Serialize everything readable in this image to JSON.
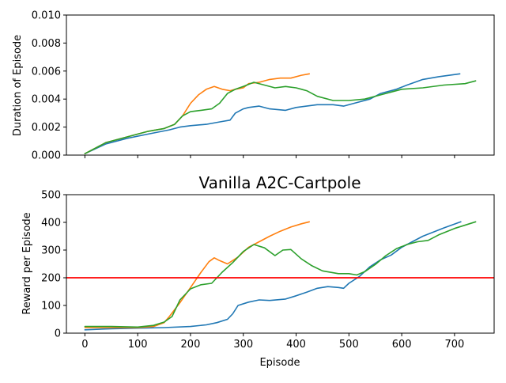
{
  "chart_data": [
    {
      "type": "line",
      "title": "",
      "xlabel": "",
      "ylabel": "Duration of Episode",
      "xlim": [
        -35,
        775
      ],
      "ylim": [
        0,
        0.01
      ],
      "x_ticks": [
        0,
        100,
        200,
        300,
        400,
        500,
        600,
        700
      ],
      "x_tick_labels_shown": false,
      "y_ticks": [
        "0.000",
        "0.002",
        "0.004",
        "0.006",
        "0.008",
        "0.010"
      ],
      "grid": false,
      "series": [
        {
          "color": "#1f77b4",
          "points": [
            [
              0,
              0.0001
            ],
            [
              40,
              0.0008
            ],
            [
              80,
              0.0012
            ],
            [
              120,
              0.0015
            ],
            [
              160,
              0.0018
            ],
            [
              180,
              0.002
            ],
            [
              200,
              0.0021
            ],
            [
              230,
              0.0022
            ],
            [
              260,
              0.0024
            ],
            [
              275,
              0.0025
            ],
            [
              285,
              0.003
            ],
            [
              300,
              0.0033
            ],
            [
              310,
              0.0034
            ],
            [
              330,
              0.0035
            ],
            [
              350,
              0.0033
            ],
            [
              380,
              0.0032
            ],
            [
              400,
              0.0034
            ],
            [
              440,
              0.0036
            ],
            [
              470,
              0.0036
            ],
            [
              490,
              0.0035
            ],
            [
              510,
              0.0037
            ],
            [
              540,
              0.004
            ],
            [
              560,
              0.0044
            ],
            [
              590,
              0.0047
            ],
            [
              610,
              0.005
            ],
            [
              640,
              0.0054
            ],
            [
              670,
              0.0056
            ],
            [
              710,
              0.0058
            ]
          ]
        },
        {
          "color": "#ff7f0e",
          "points": [
            [
              0,
              0.0001
            ],
            [
              40,
              0.0009
            ],
            [
              80,
              0.0013
            ],
            [
              120,
              0.0017
            ],
            [
              150,
              0.0019
            ],
            [
              170,
              0.0022
            ],
            [
              185,
              0.0028
            ],
            [
              200,
              0.0037
            ],
            [
              215,
              0.0043
            ],
            [
              230,
              0.0047
            ],
            [
              245,
              0.0049
            ],
            [
              260,
              0.0047
            ],
            [
              275,
              0.0046
            ],
            [
              285,
              0.0047
            ],
            [
              300,
              0.0048
            ],
            [
              310,
              0.0051
            ],
            [
              330,
              0.0052
            ],
            [
              350,
              0.0054
            ],
            [
              370,
              0.0055
            ],
            [
              390,
              0.0055
            ],
            [
              410,
              0.0057
            ],
            [
              425,
              0.0058
            ]
          ]
        },
        {
          "color": "#2ca02c",
          "points": [
            [
              0,
              0.0001
            ],
            [
              40,
              0.0009
            ],
            [
              80,
              0.0013
            ],
            [
              120,
              0.0017
            ],
            [
              150,
              0.0019
            ],
            [
              170,
              0.0022
            ],
            [
              185,
              0.0028
            ],
            [
              200,
              0.0031
            ],
            [
              220,
              0.0032
            ],
            [
              240,
              0.0033
            ],
            [
              255,
              0.0037
            ],
            [
              270,
              0.0044
            ],
            [
              285,
              0.0047
            ],
            [
              300,
              0.0049
            ],
            [
              320,
              0.0052
            ],
            [
              340,
              0.005
            ],
            [
              360,
              0.0048
            ],
            [
              380,
              0.0049
            ],
            [
              400,
              0.0048
            ],
            [
              420,
              0.0046
            ],
            [
              440,
              0.0042
            ],
            [
              470,
              0.0039
            ],
            [
              500,
              0.0039
            ],
            [
              530,
              0.004
            ],
            [
              560,
              0.0043
            ],
            [
              600,
              0.0047
            ],
            [
              640,
              0.0048
            ],
            [
              680,
              0.005
            ],
            [
              720,
              0.0051
            ],
            [
              740,
              0.0053
            ]
          ]
        }
      ]
    },
    {
      "type": "line",
      "title": "Vanilla A2C-Cartpole",
      "xlabel": "Episode",
      "ylabel": "Reward per Episode",
      "xlim": [
        -35,
        775
      ],
      "ylim": [
        0,
        500
      ],
      "x_ticks": [
        "0",
        "100",
        "200",
        "300",
        "400",
        "500",
        "600",
        "700"
      ],
      "y_ticks": [
        "0",
        "100",
        "200",
        "300",
        "400",
        "500"
      ],
      "grid": false,
      "hline": {
        "y": 200,
        "color": "#ff0000"
      },
      "series": [
        {
          "color": "#1f77b4",
          "points": [
            [
              0,
              12
            ],
            [
              50,
              16
            ],
            [
              100,
              18
            ],
            [
              150,
              20
            ],
            [
              200,
              24
            ],
            [
              230,
              30
            ],
            [
              250,
              38
            ],
            [
              270,
              50
            ],
            [
              280,
              70
            ],
            [
              290,
              100
            ],
            [
              310,
              112
            ],
            [
              330,
              120
            ],
            [
              350,
              118
            ],
            [
              380,
              123
            ],
            [
              400,
              135
            ],
            [
              420,
              148
            ],
            [
              440,
              162
            ],
            [
              460,
              168
            ],
            [
              480,
              165
            ],
            [
              490,
              162
            ],
            [
              500,
              180
            ],
            [
              520,
              205
            ],
            [
              540,
              240
            ],
            [
              560,
              265
            ],
            [
              580,
              282
            ],
            [
              600,
              310
            ],
            [
              640,
              350
            ],
            [
              680,
              380
            ],
            [
              712,
              402
            ]
          ]
        },
        {
          "color": "#ff7f0e",
          "points": [
            [
              0,
              20
            ],
            [
              50,
              20
            ],
            [
              100,
              20
            ],
            [
              130,
              24
            ],
            [
              150,
              38
            ],
            [
              160,
              60
            ],
            [
              180,
              110
            ],
            [
              200,
              165
            ],
            [
              220,
              220
            ],
            [
              235,
              258
            ],
            [
              245,
              272
            ],
            [
              255,
              262
            ],
            [
              270,
              250
            ],
            [
              290,
              275
            ],
            [
              310,
              310
            ],
            [
              330,
              330
            ],
            [
              350,
              350
            ],
            [
              370,
              368
            ],
            [
              390,
              383
            ],
            [
              410,
              395
            ],
            [
              425,
              402
            ]
          ]
        },
        {
          "color": "#2ca02c",
          "points": [
            [
              0,
              24
            ],
            [
              50,
              24
            ],
            [
              100,
              22
            ],
            [
              130,
              28
            ],
            [
              150,
              40
            ],
            [
              165,
              60
            ],
            [
              180,
              120
            ],
            [
              200,
              160
            ],
            [
              220,
              175
            ],
            [
              240,
              180
            ],
            [
              260,
              220
            ],
            [
              280,
              255
            ],
            [
              300,
              295
            ],
            [
              320,
              320
            ],
            [
              340,
              308
            ],
            [
              360,
              280
            ],
            [
              375,
              300
            ],
            [
              390,
              302
            ],
            [
              410,
              268
            ],
            [
              430,
              243
            ],
            [
              450,
              225
            ],
            [
              480,
              215
            ],
            [
              500,
              215
            ],
            [
              515,
              210
            ],
            [
              530,
              222
            ],
            [
              550,
              248
            ],
            [
              570,
              280
            ],
            [
              590,
              305
            ],
            [
              610,
              320
            ],
            [
              630,
              330
            ],
            [
              650,
              335
            ],
            [
              670,
              355
            ],
            [
              700,
              378
            ],
            [
              740,
              402
            ]
          ]
        }
      ]
    }
  ]
}
